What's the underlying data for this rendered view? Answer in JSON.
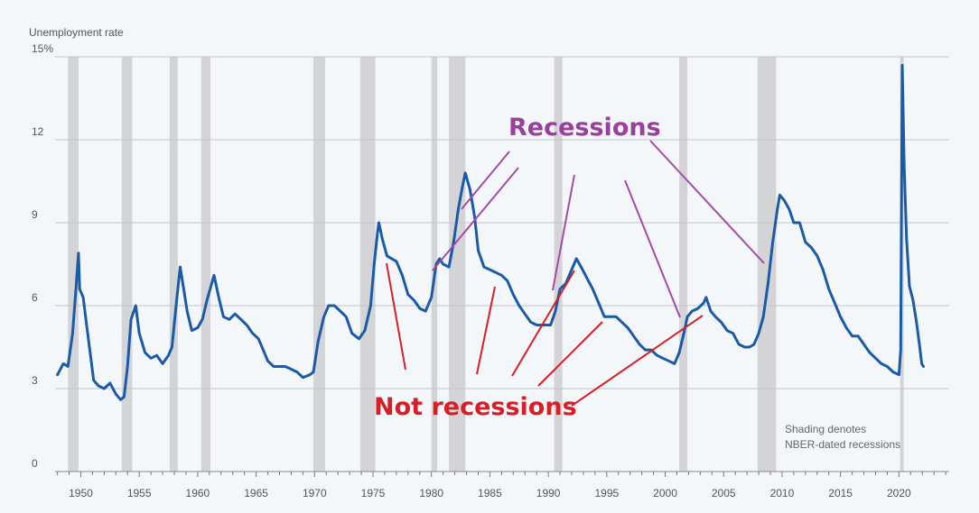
{
  "chart_data": {
    "type": "line",
    "ylabel": "Unemployment rate",
    "ylim": [
      0,
      15
    ],
    "xlim": [
      1947.8,
      2024.3
    ],
    "yticks": [
      "15%",
      "12",
      "9",
      "6",
      "3",
      "0"
    ],
    "xticks": [
      "1950",
      "1955",
      "1960",
      "1965",
      "1970",
      "1975",
      "1980",
      "1985",
      "1990",
      "1995",
      "2000",
      "2005",
      "2010",
      "2015",
      "2020"
    ],
    "grid": true,
    "note_lines": [
      "Shading denotes",
      "NBER-dated recessions"
    ],
    "series": [
      {
        "color": "#1a5aa6",
        "points": [
          [
            1948.0,
            3.5
          ],
          [
            1948.5,
            3.9
          ],
          [
            1948.9,
            3.8
          ],
          [
            1949.3,
            5.0
          ],
          [
            1949.6,
            6.7
          ],
          [
            1949.8,
            7.9
          ],
          [
            1949.9,
            6.6
          ],
          [
            1950.2,
            6.3
          ],
          [
            1950.5,
            5.3
          ],
          [
            1950.8,
            4.3
          ],
          [
            1951.1,
            3.3
          ],
          [
            1951.5,
            3.1
          ],
          [
            1952.0,
            3.0
          ],
          [
            1952.5,
            3.2
          ],
          [
            1953.0,
            2.8
          ],
          [
            1953.4,
            2.6
          ],
          [
            1953.7,
            2.7
          ],
          [
            1954.0,
            3.8
          ],
          [
            1954.3,
            5.5
          ],
          [
            1954.7,
            6.0
          ],
          [
            1955.0,
            5.0
          ],
          [
            1955.5,
            4.3
          ],
          [
            1956.0,
            4.1
          ],
          [
            1956.5,
            4.2
          ],
          [
            1957.0,
            3.9
          ],
          [
            1957.5,
            4.2
          ],
          [
            1957.8,
            4.5
          ],
          [
            1958.2,
            6.2
          ],
          [
            1958.5,
            7.4
          ],
          [
            1958.8,
            6.6
          ],
          [
            1959.1,
            5.8
          ],
          [
            1959.5,
            5.1
          ],
          [
            1960.0,
            5.2
          ],
          [
            1960.4,
            5.5
          ],
          [
            1960.8,
            6.2
          ],
          [
            1961.2,
            6.8
          ],
          [
            1961.4,
            7.1
          ],
          [
            1961.8,
            6.3
          ],
          [
            1962.2,
            5.6
          ],
          [
            1962.7,
            5.5
          ],
          [
            1963.2,
            5.7
          ],
          [
            1963.7,
            5.5
          ],
          [
            1964.2,
            5.3
          ],
          [
            1964.7,
            5.0
          ],
          [
            1965.2,
            4.8
          ],
          [
            1965.6,
            4.4
          ],
          [
            1966.0,
            4.0
          ],
          [
            1966.5,
            3.8
          ],
          [
            1967.0,
            3.8
          ],
          [
            1967.5,
            3.8
          ],
          [
            1968.0,
            3.7
          ],
          [
            1968.5,
            3.6
          ],
          [
            1969.0,
            3.4
          ],
          [
            1969.6,
            3.5
          ],
          [
            1969.9,
            3.6
          ],
          [
            1970.3,
            4.7
          ],
          [
            1970.8,
            5.6
          ],
          [
            1971.2,
            6.0
          ],
          [
            1971.7,
            6.0
          ],
          [
            1972.2,
            5.8
          ],
          [
            1972.7,
            5.6
          ],
          [
            1973.2,
            5.0
          ],
          [
            1973.8,
            4.8
          ],
          [
            1974.3,
            5.1
          ],
          [
            1974.8,
            6.0
          ],
          [
            1975.1,
            7.5
          ],
          [
            1975.4,
            8.7
          ],
          [
            1975.5,
            9.0
          ],
          [
            1975.8,
            8.4
          ],
          [
            1976.2,
            7.8
          ],
          [
            1976.6,
            7.7
          ],
          [
            1977.0,
            7.6
          ],
          [
            1977.5,
            7.1
          ],
          [
            1978.0,
            6.4
          ],
          [
            1978.5,
            6.2
          ],
          [
            1979.0,
            5.9
          ],
          [
            1979.5,
            5.8
          ],
          [
            1980.0,
            6.3
          ],
          [
            1980.4,
            7.5
          ],
          [
            1980.7,
            7.7
          ],
          [
            1981.0,
            7.5
          ],
          [
            1981.5,
            7.4
          ],
          [
            1981.9,
            8.3
          ],
          [
            1982.3,
            9.5
          ],
          [
            1982.7,
            10.4
          ],
          [
            1982.9,
            10.8
          ],
          [
            1983.3,
            10.2
          ],
          [
            1983.7,
            9.2
          ],
          [
            1984.0,
            8.0
          ],
          [
            1984.5,
            7.4
          ],
          [
            1985.0,
            7.3
          ],
          [
            1985.5,
            7.2
          ],
          [
            1986.0,
            7.1
          ],
          [
            1986.5,
            6.9
          ],
          [
            1987.0,
            6.4
          ],
          [
            1987.5,
            6.0
          ],
          [
            1988.0,
            5.7
          ],
          [
            1988.5,
            5.4
          ],
          [
            1989.0,
            5.3
          ],
          [
            1989.6,
            5.3
          ],
          [
            1990.2,
            5.3
          ],
          [
            1990.6,
            5.8
          ],
          [
            1991.0,
            6.6
          ],
          [
            1991.5,
            6.8
          ],
          [
            1992.0,
            7.3
          ],
          [
            1992.4,
            7.7
          ],
          [
            1992.8,
            7.4
          ],
          [
            1993.3,
            7.0
          ],
          [
            1993.8,
            6.6
          ],
          [
            1994.3,
            6.1
          ],
          [
            1994.8,
            5.6
          ],
          [
            1995.3,
            5.6
          ],
          [
            1995.8,
            5.6
          ],
          [
            1996.3,
            5.4
          ],
          [
            1996.8,
            5.2
          ],
          [
            1997.3,
            4.9
          ],
          [
            1997.8,
            4.6
          ],
          [
            1998.3,
            4.4
          ],
          [
            1998.8,
            4.4
          ],
          [
            1999.3,
            4.2
          ],
          [
            1999.8,
            4.1
          ],
          [
            2000.3,
            4.0
          ],
          [
            2000.8,
            3.9
          ],
          [
            2001.2,
            4.3
          ],
          [
            2001.6,
            5.0
          ],
          [
            2001.9,
            5.6
          ],
          [
            2002.3,
            5.8
          ],
          [
            2002.8,
            5.9
          ],
          [
            2003.3,
            6.1
          ],
          [
            2003.5,
            6.3
          ],
          [
            2003.9,
            5.8
          ],
          [
            2004.3,
            5.6
          ],
          [
            2004.8,
            5.4
          ],
          [
            2005.3,
            5.1
          ],
          [
            2005.8,
            5.0
          ],
          [
            2006.3,
            4.6
          ],
          [
            2006.8,
            4.5
          ],
          [
            2007.2,
            4.5
          ],
          [
            2007.6,
            4.6
          ],
          [
            2008.0,
            5.0
          ],
          [
            2008.4,
            5.6
          ],
          [
            2008.8,
            6.8
          ],
          [
            2009.2,
            8.3
          ],
          [
            2009.6,
            9.5
          ],
          [
            2009.8,
            10.0
          ],
          [
            2010.2,
            9.8
          ],
          [
            2010.6,
            9.5
          ],
          [
            2011.0,
            9.0
          ],
          [
            2011.5,
            9.0
          ],
          [
            2012.0,
            8.3
          ],
          [
            2012.5,
            8.1
          ],
          [
            2013.0,
            7.8
          ],
          [
            2013.5,
            7.3
          ],
          [
            2014.0,
            6.6
          ],
          [
            2014.5,
            6.1
          ],
          [
            2015.0,
            5.6
          ],
          [
            2015.5,
            5.2
          ],
          [
            2016.0,
            4.9
          ],
          [
            2016.5,
            4.9
          ],
          [
            2017.0,
            4.6
          ],
          [
            2017.5,
            4.3
          ],
          [
            2018.0,
            4.1
          ],
          [
            2018.5,
            3.9
          ],
          [
            2019.0,
            3.8
          ],
          [
            2019.5,
            3.6
          ],
          [
            2020.0,
            3.5
          ],
          [
            2020.15,
            4.4
          ],
          [
            2020.28,
            14.7
          ],
          [
            2020.45,
            11.0
          ],
          [
            2020.65,
            8.4
          ],
          [
            2020.9,
            6.7
          ],
          [
            2021.2,
            6.2
          ],
          [
            2021.5,
            5.4
          ],
          [
            2021.75,
            4.6
          ],
          [
            2021.95,
            3.9
          ],
          [
            2022.1,
            3.8
          ]
        ]
      }
    ],
    "recessions": [
      [
        1948.9,
        1949.8
      ],
      [
        1953.5,
        1954.4
      ],
      [
        1957.6,
        1958.3
      ],
      [
        1960.3,
        1961.1
      ],
      [
        1969.9,
        1970.9
      ],
      [
        1973.9,
        1975.2
      ],
      [
        1980.0,
        1980.5
      ],
      [
        1981.5,
        1982.9
      ],
      [
        1990.5,
        1991.2
      ],
      [
        2001.2,
        2001.9
      ],
      [
        2007.9,
        2009.5
      ],
      [
        2020.1,
        2020.3
      ]
    ],
    "annotations": {
      "recessions_label": "Recessions",
      "not_recessions_label": "Not recessions"
    }
  }
}
